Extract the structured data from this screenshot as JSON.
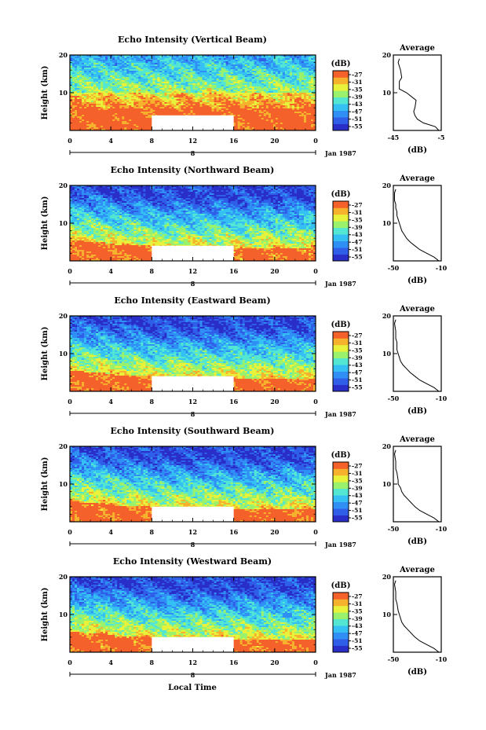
{
  "figure": {
    "xlabel": "Local Time",
    "date_label": "Jan 1987",
    "date_tick": "8",
    "colorbar_unit": "(dB)",
    "colorbar_ticks": [
      "-27",
      "-31",
      "-35",
      "-39",
      "-43",
      "-47",
      "-51",
      "-55"
    ],
    "colorbar_colors": [
      "#2a2ec8",
      "#2f5ee8",
      "#2f8ff5",
      "#35c0f3",
      "#53e6d2",
      "#9af26c",
      "#e8f23a",
      "#f6b12d",
      "#f4612a"
    ]
  },
  "chart_data": [
    {
      "type": "heatmap",
      "title": "Echo Intensity (Vertical Beam)",
      "ylabel": "Height (km)",
      "xlim": [
        0,
        24
      ],
      "ylim": [
        0,
        20
      ],
      "x_ticks": [
        "0",
        "4",
        "8",
        "12",
        "16",
        "20",
        "0"
      ],
      "y_ticks": [
        "20",
        "10"
      ],
      "zlim": [
        -55,
        -27
      ],
      "missing_data": {
        "x": [
          8,
          16
        ],
        "y": [
          0,
          4
        ]
      },
      "profile": {
        "type": "line",
        "title": "Average",
        "xlabel": "(dB)",
        "xlim": [
          -45,
          -5
        ],
        "x_ticks": [
          "-45",
          "-5"
        ],
        "y_ticks": [
          "20",
          "10"
        ],
        "ylim": [
          0,
          20
        ],
        "x": [
          -7,
          -10,
          -20,
          -25,
          -27,
          -28,
          -27,
          -26,
          -30,
          -34,
          -40,
          -40,
          -38,
          -39,
          -40,
          -41,
          -40
        ],
        "y": [
          0,
          1,
          2,
          3,
          4,
          5,
          6,
          8,
          9,
          10,
          11,
          13,
          14,
          16,
          17,
          18,
          19
        ]
      }
    },
    {
      "type": "heatmap",
      "title": "Echo Intensity (Northward Beam)",
      "ylabel": "Height (km)",
      "xlim": [
        0,
        24
      ],
      "ylim": [
        0,
        20
      ],
      "x_ticks": [
        "0",
        "4",
        "8",
        "12",
        "16",
        "20",
        "0"
      ],
      "y_ticks": [
        "20",
        "10"
      ],
      "zlim": [
        -55,
        -27
      ],
      "missing_data": {
        "x": [
          8,
          16
        ],
        "y": [
          0,
          4
        ]
      },
      "profile": {
        "type": "line",
        "title": "Average",
        "xlabel": "(dB)",
        "xlim": [
          -50,
          -10
        ],
        "x_ticks": [
          "-50",
          "-10"
        ],
        "y_ticks": [
          "20",
          "10"
        ],
        "ylim": [
          0,
          20
        ],
        "x": [
          -12,
          -16,
          -22,
          -28,
          -32,
          -36,
          -39,
          -41,
          -43,
          -44,
          -45,
          -46,
          -47,
          -47,
          -48,
          -48,
          -49,
          -49,
          -48
        ],
        "y": [
          0,
          1,
          2,
          3,
          4,
          5,
          6,
          7,
          8,
          9,
          10,
          11,
          12,
          13,
          14,
          15,
          16,
          18,
          19
        ]
      }
    },
    {
      "type": "heatmap",
      "title": "Echo Intensity (Eastward Beam)",
      "ylabel": "Height (km)",
      "xlim": [
        0,
        24
      ],
      "ylim": [
        0,
        20
      ],
      "x_ticks": [
        "0",
        "4",
        "8",
        "12",
        "16",
        "20",
        "0"
      ],
      "y_ticks": [
        "20",
        "10"
      ],
      "zlim": [
        -55,
        -27
      ],
      "missing_data": {
        "x": [
          8,
          16
        ],
        "y": [
          0,
          4
        ]
      },
      "profile": {
        "type": "line",
        "title": "Average",
        "xlabel": "(dB)",
        "xlim": [
          -50,
          -10
        ],
        "x_ticks": [
          "-50",
          "-10"
        ],
        "y_ticks": [
          "20",
          "10"
        ],
        "ylim": [
          0,
          20
        ],
        "x": [
          -12,
          -16,
          -22,
          -28,
          -32,
          -36,
          -39,
          -42,
          -44,
          -45,
          -46,
          -47,
          -47,
          -48,
          -48,
          -49,
          -48
        ],
        "y": [
          0,
          1,
          2,
          3,
          4,
          5,
          6,
          7,
          8,
          9,
          10,
          11,
          13,
          14,
          16,
          18,
          19
        ]
      }
    },
    {
      "type": "heatmap",
      "title": "Echo Intensity (Southward Beam)",
      "ylabel": "Height (km)",
      "xlim": [
        0,
        24
      ],
      "ylim": [
        0,
        20
      ],
      "x_ticks": [
        "0",
        "4",
        "8",
        "12",
        "16",
        "20",
        "0"
      ],
      "y_ticks": [
        "20",
        "10"
      ],
      "zlim": [
        -55,
        -27
      ],
      "missing_data": {
        "x": [
          8,
          16
        ],
        "y": [
          0,
          4
        ]
      },
      "profile": {
        "type": "line",
        "title": "Average",
        "xlabel": "(dB)",
        "xlim": [
          -50,
          -10
        ],
        "x_ticks": [
          "-50",
          "-10"
        ],
        "y_ticks": [
          "20",
          "10"
        ],
        "ylim": [
          0,
          20
        ],
        "x": [
          -12,
          -16,
          -22,
          -28,
          -32,
          -35,
          -38,
          -41,
          -43,
          -44,
          -46,
          -46,
          -47,
          -48,
          -48,
          -49,
          -48
        ],
        "y": [
          0,
          1,
          2,
          3,
          4,
          5,
          6,
          7,
          8,
          9,
          10,
          11,
          13,
          14,
          16,
          18,
          19
        ]
      }
    },
    {
      "type": "heatmap",
      "title": "Echo Intensity (Westward Beam)",
      "ylabel": "Height (km)",
      "xlim": [
        0,
        24
      ],
      "ylim": [
        0,
        20
      ],
      "x_ticks": [
        "0",
        "4",
        "8",
        "12",
        "16",
        "20",
        "0"
      ],
      "y_ticks": [
        "20",
        "10"
      ],
      "zlim": [
        -55,
        -27
      ],
      "missing_data": {
        "x": [
          8,
          16
        ],
        "y": [
          0,
          4
        ]
      },
      "profile": {
        "type": "line",
        "title": "Average",
        "xlabel": "(dB)",
        "xlim": [
          -50,
          -10
        ],
        "x_ticks": [
          "-50",
          "-10"
        ],
        "y_ticks": [
          "20",
          "10"
        ],
        "ylim": [
          0,
          20
        ],
        "x": [
          -12,
          -16,
          -22,
          -28,
          -32,
          -35,
          -38,
          -41,
          -43,
          -44,
          -45,
          -46,
          -47,
          -48,
          -48,
          -49,
          -48
        ],
        "y": [
          0,
          1,
          2,
          3,
          4,
          5,
          6,
          7,
          8,
          9,
          10,
          11,
          13,
          14,
          16,
          18,
          19
        ]
      }
    }
  ]
}
